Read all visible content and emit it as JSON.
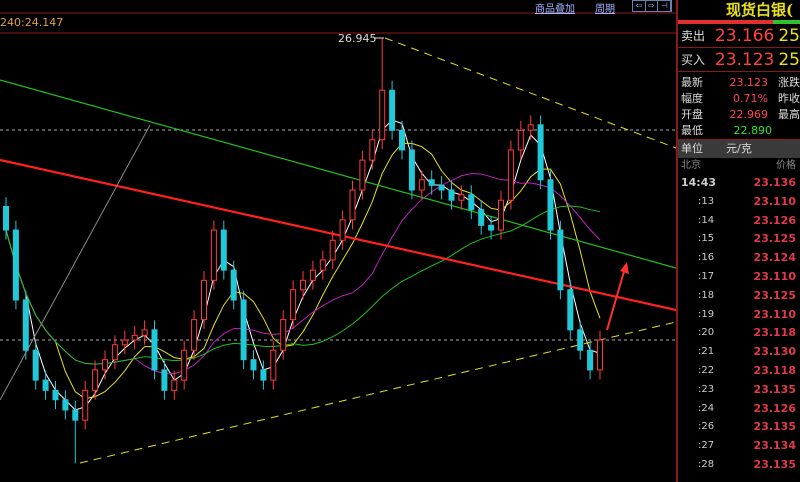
{
  "toolbar": {
    "overlay": "商品叠加",
    "period": "周期",
    "nav": [
      "⇦",
      "⇨",
      "⊣"
    ]
  },
  "ma_label": "240:24.147",
  "chart_data": {
    "type": "candlestick",
    "high_label": "26.945",
    "reference_price": 23.1,
    "closes": [
      24.5,
      23.61,
      22.97,
      22.59,
      22.46,
      22.34,
      22.21,
      22.08,
      22.46,
      22.72,
      22.85,
      23.04,
      23.1,
      23.16,
      23.23,
      22.72,
      22.46,
      22.59,
      22.97,
      23.36,
      23.86,
      24.5,
      23.99,
      23.61,
      22.85,
      22.72,
      22.59,
      22.97,
      23.36,
      23.74,
      23.86,
      23.99,
      24.12,
      24.37,
      24.63,
      25.01,
      25.39,
      25.65,
      26.28,
      25.77,
      25.52,
      25.01,
      25.14,
      25.07,
      25.01,
      24.88,
      24.95,
      24.76,
      24.56,
      24.5,
      24.88,
      25.52,
      25.77,
      25.84,
      25.14,
      24.5,
      23.74,
      23.23,
      22.97,
      22.72,
      23.1
    ],
    "period_low": 21.53,
    "period_high": 26.945,
    "ylim": [
      21.3,
      27.5
    ],
    "colors": {
      "up": "#ff3a3a",
      "down": "#20c8d8",
      "ma1": "#ffffff",
      "ma2": "#e8e020",
      "ma3": "#c020c0",
      "ma4": "#20c020",
      "trend_red": "#ff2020",
      "trend_dash": "#e8e020"
    }
  },
  "panel": {
    "title": "现货白银(",
    "sell": {
      "label": "卖出",
      "value": "23.166",
      "extra": "25"
    },
    "buy": {
      "label": "买入",
      "value": "23.123",
      "extra": "25"
    },
    "info": [
      {
        "label": "最新",
        "value": "23.123",
        "color": "#ff4060",
        "right": "涨跌"
      },
      {
        "label": "幅度",
        "value": "0.71%",
        "color": "#ff4060",
        "right": "昨收"
      },
      {
        "label": "开盘",
        "value": "22.969",
        "color": "#ff4060",
        "right": "最高"
      },
      {
        "label": "最低",
        "value": "22.890",
        "color": "#30e030",
        "right": ""
      }
    ],
    "unit": {
      "label": "单位",
      "value": "元/克"
    },
    "ticks_header": {
      "time": "北京",
      "price": "价格"
    },
    "ticks": [
      {
        "t": "14:43",
        "p": "23.136"
      },
      {
        "t": ":13",
        "p": "23.110"
      },
      {
        "t": ":14",
        "p": "23.126"
      },
      {
        "t": ":15",
        "p": "23.125"
      },
      {
        "t": ":16",
        "p": "23.124"
      },
      {
        "t": ":17",
        "p": "23.110"
      },
      {
        "t": ":18",
        "p": "23.125"
      },
      {
        "t": ":19",
        "p": "23.110"
      },
      {
        "t": ":20",
        "p": "23.118"
      },
      {
        "t": ":21",
        "p": "23.130"
      },
      {
        "t": ":22",
        "p": "23.118"
      },
      {
        "t": ":23",
        "p": "23.135"
      },
      {
        "t": ":24",
        "p": "23.126"
      },
      {
        "t": ":26",
        "p": "23.135"
      },
      {
        "t": ":27",
        "p": "23.134"
      },
      {
        "t": ":28",
        "p": "23.135"
      }
    ]
  }
}
